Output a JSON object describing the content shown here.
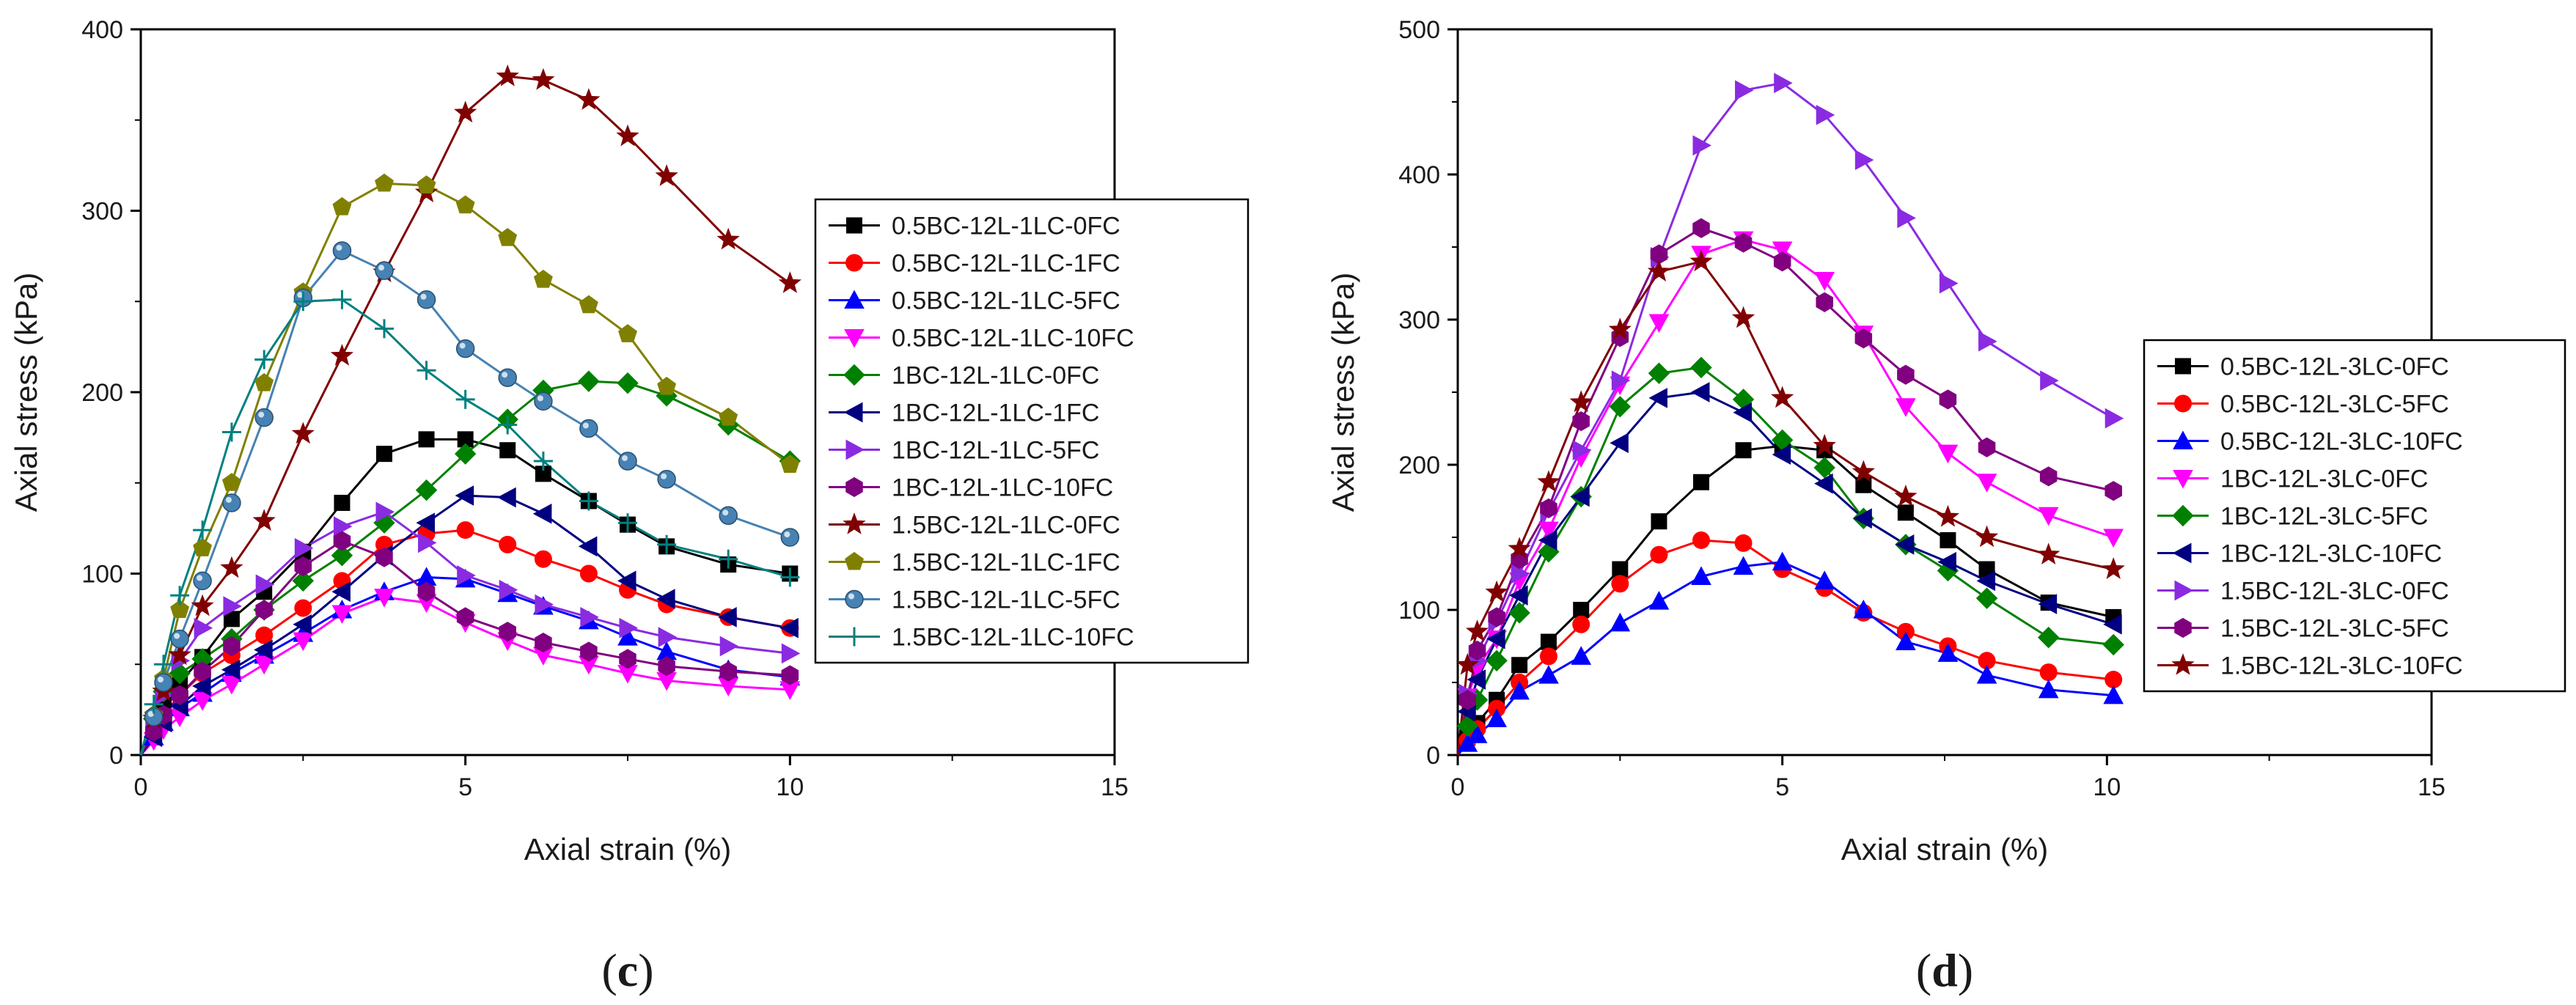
{
  "chart_data": [
    {
      "type": "line",
      "caption_letter": "c",
      "xlabel": "Axial strain (%)",
      "ylabel": "Axial stress (kPa)",
      "xlim": [
        0,
        15
      ],
      "ylim": [
        0,
        400
      ],
      "xticks": [
        0,
        5,
        10,
        15
      ],
      "yticks": [
        0,
        100,
        200,
        300,
        400
      ],
      "legend_position": "right-middle",
      "series": [
        {
          "name": "0.5BC-12L-1LC-0FC",
          "color": "#000000",
          "marker": "square",
          "x": [
            0.0,
            0.2,
            0.35,
            0.6,
            0.95,
            1.4,
            1.9,
            2.5,
            3.1,
            3.75,
            4.4,
            5.0,
            5.65,
            6.2,
            6.9,
            7.5,
            8.1,
            9.05,
            10.0
          ],
          "y": [
            0,
            15,
            28,
            40,
            54,
            75,
            90,
            112,
            139,
            166,
            174,
            174,
            168,
            155,
            140,
            127,
            115,
            105,
            100
          ]
        },
        {
          "name": "0.5BC-12L-1LC-1FC",
          "color": "#ff0000",
          "marker": "circle",
          "x": [
            0.0,
            0.2,
            0.35,
            0.6,
            0.95,
            1.4,
            1.9,
            2.5,
            3.1,
            3.75,
            4.4,
            5.0,
            5.65,
            6.2,
            6.9,
            7.5,
            8.1,
            9.05,
            10.0
          ],
          "y": [
            0,
            12,
            22,
            33,
            45,
            55,
            66,
            81,
            96,
            116,
            122,
            124,
            116,
            108,
            100,
            91,
            83,
            76,
            70
          ]
        },
        {
          "name": "0.5BC-12L-1LC-5FC",
          "color": "#0000ff",
          "marker": "triangle-up",
          "x": [
            0.0,
            0.2,
            0.35,
            0.6,
            0.95,
            1.4,
            1.9,
            2.5,
            3.1,
            3.75,
            4.4,
            5.0,
            5.65,
            6.2,
            6.9,
            7.5,
            8.1,
            9.05,
            10.0
          ],
          "y": [
            0,
            10,
            18,
            26,
            34,
            45,
            55,
            67,
            80,
            90,
            98,
            97,
            89,
            82,
            74,
            65,
            57,
            47,
            43
          ]
        },
        {
          "name": "0.5BC-12L-1LC-10FC",
          "color": "#ff00ff",
          "marker": "triangle-down",
          "x": [
            0.0,
            0.2,
            0.35,
            0.6,
            0.95,
            1.4,
            1.9,
            2.5,
            3.1,
            3.75,
            4.4,
            5.0,
            5.65,
            6.2,
            6.9,
            7.5,
            8.1,
            9.05,
            10.0
          ],
          "y": [
            0,
            8,
            14,
            21,
            30,
            39,
            50,
            63,
            78,
            87,
            84,
            73,
            63,
            55,
            50,
            45,
            41,
            38,
            36
          ]
        },
        {
          "name": "1BC-12L-1LC-0FC",
          "color": "#008000",
          "marker": "diamond",
          "x": [
            0.0,
            0.2,
            0.35,
            0.6,
            0.95,
            1.4,
            1.9,
            2.5,
            3.1,
            3.75,
            4.4,
            5.0,
            5.65,
            6.2,
            6.9,
            7.5,
            8.1,
            9.05,
            10.0
          ],
          "y": [
            0,
            20,
            35,
            45,
            53,
            64,
            80,
            96,
            110,
            128,
            146,
            166,
            185,
            201,
            206,
            205,
            198,
            182,
            162
          ]
        },
        {
          "name": "1BC-12L-1LC-1FC",
          "color": "#000080",
          "marker": "triangle-left",
          "x": [
            0.0,
            0.2,
            0.35,
            0.6,
            0.95,
            1.4,
            1.9,
            2.5,
            3.1,
            3.75,
            4.4,
            5.0,
            5.65,
            6.2,
            6.9,
            7.5,
            8.1,
            9.05,
            10.0
          ],
          "y": [
            0,
            10,
            18,
            27,
            38,
            47,
            58,
            72,
            90,
            110,
            128,
            143,
            142,
            133,
            115,
            96,
            86,
            76,
            70
          ]
        },
        {
          "name": "1BC-12L-1LC-5FC",
          "color": "#8a2be2",
          "marker": "triangle-right",
          "x": [
            0.0,
            0.2,
            0.35,
            0.6,
            0.95,
            1.4,
            1.9,
            2.5,
            3.1,
            3.75,
            4.4,
            5.0,
            5.65,
            6.2,
            6.9,
            7.5,
            8.1,
            9.05,
            10.0
          ],
          "y": [
            0,
            18,
            33,
            52,
            70,
            82,
            94,
            114,
            126,
            134,
            117,
            99,
            91,
            83,
            76,
            70,
            65,
            60,
            56
          ]
        },
        {
          "name": "1BC-12L-1LC-10FC",
          "color": "#800080",
          "marker": "hexagon",
          "x": [
            0.0,
            0.2,
            0.35,
            0.6,
            0.95,
            1.4,
            1.9,
            2.5,
            3.1,
            3.75,
            4.4,
            5.0,
            5.65,
            6.2,
            6.9,
            7.5,
            8.1,
            9.05,
            10.0
          ],
          "y": [
            0,
            13,
            22,
            33,
            46,
            60,
            80,
            104,
            118,
            109,
            90,
            76,
            68,
            62,
            57,
            53,
            49,
            46,
            44
          ]
        },
        {
          "name": "1.5BC-12L-1LC-0FC",
          "color": "#800000",
          "marker": "star",
          "x": [
            0.0,
            0.2,
            0.35,
            0.6,
            0.95,
            1.4,
            1.9,
            2.5,
            3.1,
            3.75,
            4.4,
            5.0,
            5.65,
            6.2,
            6.9,
            7.5,
            8.1,
            9.05,
            10.0
          ],
          "y": [
            0,
            20,
            35,
            55,
            82,
            103,
            129,
            177,
            220,
            266,
            310,
            354,
            374,
            372,
            361,
            341,
            319,
            284,
            260
          ]
        },
        {
          "name": "1.5BC-12L-1LC-1FC",
          "color": "#808000",
          "marker": "pentagon",
          "x": [
            0.0,
            0.2,
            0.35,
            0.6,
            0.95,
            1.4,
            1.9,
            2.5,
            3.1,
            3.75,
            4.4,
            5.0,
            5.65,
            6.2,
            6.9,
            7.5,
            8.1,
            9.05,
            10.0
          ],
          "y": [
            0,
            22,
            42,
            80,
            114,
            150,
            205,
            255,
            302,
            315,
            314,
            303,
            285,
            262,
            248,
            232,
            203,
            186,
            160
          ]
        },
        {
          "name": "1.5BC-12L-1LC-5FC",
          "color": "#4682b4",
          "marker": "sphere",
          "x": [
            0.0,
            0.2,
            0.35,
            0.6,
            0.95,
            1.4,
            1.9,
            2.5,
            3.1,
            3.75,
            4.4,
            5.0,
            5.65,
            6.2,
            6.9,
            7.5,
            8.1,
            9.05,
            10.0
          ],
          "y": [
            0,
            21,
            40,
            64,
            96,
            139,
            186,
            252,
            278,
            267,
            251,
            224,
            208,
            195,
            180,
            162,
            152,
            132,
            120
          ]
        },
        {
          "name": "1.5BC-12L-1LC-10FC",
          "color": "#008080",
          "marker": "plus",
          "x": [
            0.0,
            0.2,
            0.35,
            0.6,
            0.95,
            1.4,
            1.9,
            2.5,
            3.1,
            3.75,
            4.4,
            5.0,
            5.65,
            6.2,
            6.9,
            7.5,
            8.1,
            9.05,
            10.0
          ],
          "y": [
            0,
            28,
            50,
            88,
            124,
            178,
            218,
            250,
            251,
            235,
            212,
            196,
            182,
            162,
            140,
            128,
            116,
            108,
            98
          ]
        }
      ]
    },
    {
      "type": "line",
      "caption_letter": "d",
      "xlabel": "Axial strain (%)",
      "ylabel": "Axial stress (kPa)",
      "xlim": [
        0,
        15
      ],
      "ylim": [
        0,
        500
      ],
      "xticks": [
        0,
        5,
        10,
        15
      ],
      "yticks": [
        0,
        100,
        200,
        300,
        400,
        500
      ],
      "legend_position": "right-middle",
      "series": [
        {
          "name": "0.5BC-12L-3LC-0FC",
          "color": "#000000",
          "marker": "square",
          "x": [
            0.0,
            0.15,
            0.3,
            0.6,
            0.95,
            1.4,
            1.9,
            2.5,
            3.1,
            3.75,
            4.4,
            5.0,
            5.65,
            6.25,
            6.9,
            7.55,
            8.15,
            9.1,
            10.1
          ],
          "y": [
            0,
            12,
            22,
            38,
            62,
            78,
            100,
            128,
            161,
            188,
            210,
            213,
            210,
            186,
            167,
            148,
            128,
            105,
            95
          ]
        },
        {
          "name": "0.5BC-12L-3LC-5FC",
          "color": "#ff0000",
          "marker": "circle",
          "x": [
            0.0,
            0.15,
            0.3,
            0.6,
            0.95,
            1.4,
            1.9,
            2.5,
            3.1,
            3.75,
            4.4,
            5.0,
            5.65,
            6.25,
            6.9,
            7.55,
            8.15,
            9.1,
            10.1
          ],
          "y": [
            0,
            10,
            18,
            32,
            50,
            68,
            90,
            118,
            138,
            148,
            146,
            128,
            115,
            98,
            85,
            75,
            65,
            57,
            52
          ]
        },
        {
          "name": "0.5BC-12L-3LC-10FC",
          "color": "#0000ff",
          "marker": "triangle-up",
          "x": [
            0.0,
            0.15,
            0.3,
            0.6,
            0.95,
            1.4,
            1.9,
            2.5,
            3.1,
            3.75,
            4.4,
            5.0,
            5.65,
            6.25,
            6.9,
            7.55,
            8.15,
            9.1,
            10.1
          ],
          "y": [
            0,
            8,
            14,
            25,
            44,
            55,
            68,
            91,
            106,
            123,
            130,
            133,
            120,
            100,
            78,
            70,
            55,
            45,
            41
          ]
        },
        {
          "name": "1BC-12L-3LC-0FC",
          "color": "#ff00ff",
          "marker": "triangle-down",
          "x": [
            0.0,
            0.15,
            0.3,
            0.6,
            0.95,
            1.4,
            1.9,
            2.5,
            3.1,
            3.75,
            4.4,
            5.0,
            5.65,
            6.25,
            6.9,
            7.55,
            8.15,
            9.1,
            10.1
          ],
          "y": [
            0,
            40,
            60,
            80,
            120,
            155,
            205,
            255,
            298,
            345,
            355,
            348,
            327,
            290,
            240,
            208,
            188,
            165,
            150
          ]
        },
        {
          "name": "1BC-12L-3LC-5FC",
          "color": "#008000",
          "marker": "diamond",
          "x": [
            0.0,
            0.15,
            0.3,
            0.6,
            0.95,
            1.4,
            1.9,
            2.5,
            3.1,
            3.75,
            4.4,
            5.0,
            5.65,
            6.25,
            6.9,
            7.55,
            8.15,
            9.1,
            10.1
          ],
          "y": [
            0,
            20,
            38,
            65,
            98,
            140,
            178,
            240,
            263,
            267,
            245,
            217,
            198,
            163,
            145,
            127,
            108,
            81,
            76
          ]
        },
        {
          "name": "1BC-12L-3LC-10FC",
          "color": "#000080",
          "marker": "triangle-left",
          "x": [
            0.0,
            0.15,
            0.3,
            0.6,
            0.95,
            1.4,
            1.9,
            2.5,
            3.1,
            3.75,
            4.4,
            5.0,
            5.65,
            6.25,
            6.9,
            7.55,
            8.15,
            9.1,
            10.1
          ],
          "y": [
            0,
            30,
            52,
            80,
            110,
            148,
            178,
            215,
            246,
            250,
            236,
            207,
            187,
            163,
            145,
            133,
            120,
            104,
            90
          ]
        },
        {
          "name": "1.5BC-12L-3LC-0FC",
          "color": "#8a2be2",
          "marker": "triangle-right",
          "x": [
            0.0,
            0.15,
            0.3,
            0.6,
            0.95,
            1.4,
            1.9,
            2.5,
            3.1,
            3.75,
            4.4,
            5.0,
            5.65,
            6.25,
            6.9,
            7.55,
            8.15,
            9.1,
            10.1
          ],
          "y": [
            0,
            42,
            65,
            92,
            125,
            168,
            210,
            258,
            343,
            420,
            458,
            463,
            441,
            410,
            370,
            325,
            285,
            258,
            232
          ]
        },
        {
          "name": "1.5BC-12L-3LC-5FC",
          "color": "#800080",
          "marker": "hexagon",
          "x": [
            0.0,
            0.15,
            0.3,
            0.6,
            0.95,
            1.4,
            1.9,
            2.5,
            3.1,
            3.75,
            4.4,
            5.0,
            5.65,
            6.25,
            6.9,
            7.55,
            8.15,
            9.1,
            10.1
          ],
          "y": [
            0,
            38,
            72,
            95,
            135,
            170,
            230,
            288,
            345,
            363,
            353,
            340,
            312,
            287,
            262,
            245,
            212,
            192,
            182
          ]
        },
        {
          "name": "1.5BC-12L-3LC-10FC",
          "color": "#800000",
          "marker": "star",
          "x": [
            0.0,
            0.15,
            0.3,
            0.6,
            0.95,
            1.4,
            1.9,
            2.5,
            3.1,
            3.75,
            4.4,
            5.0,
            5.65,
            6.25,
            6.9,
            7.55,
            8.15,
            9.1,
            10.1
          ],
          "y": [
            0,
            62,
            85,
            112,
            142,
            188,
            243,
            293,
            333,
            340,
            301,
            246,
            213,
            195,
            178,
            164,
            150,
            138,
            128
          ]
        }
      ]
    }
  ]
}
